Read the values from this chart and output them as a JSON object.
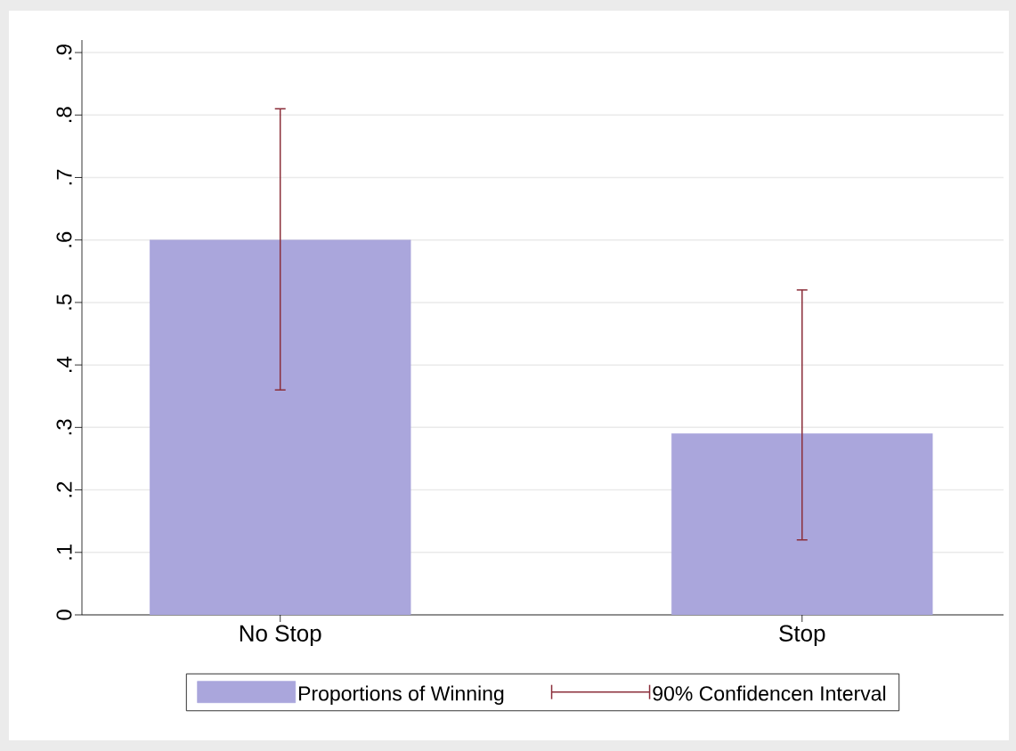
{
  "chart_data": {
    "type": "bar",
    "categories": [
      "No Stop",
      "Stop"
    ],
    "series": [
      {
        "name": "Proportions of Winning",
        "color": "#aaa6dc",
        "values": [
          0.6,
          0.29
        ],
        "errors": [
          [
            0.36,
            0.81
          ],
          [
            0.12,
            0.52
          ]
        ]
      }
    ],
    "annotations": [
      "90% Confidencen Interval"
    ],
    "ylim": [
      0,
      0.92
    ],
    "yticks": [
      0,
      {
        "value": 0.1,
        "label": ".1"
      },
      {
        "value": 0.2,
        "label": ".2"
      },
      {
        "value": 0.3,
        "label": ".3"
      },
      {
        "value": 0.4,
        "label": ".4"
      },
      {
        "value": 0.5,
        "label": ".5"
      },
      {
        "value": 0.6,
        "label": ".6"
      },
      {
        "value": 0.7,
        "label": ".7"
      },
      {
        "value": 0.8,
        "label": ".8"
      },
      {
        "value": 0.9,
        "label": ".9"
      }
    ],
    "grid": "y",
    "legend": "bottom"
  }
}
